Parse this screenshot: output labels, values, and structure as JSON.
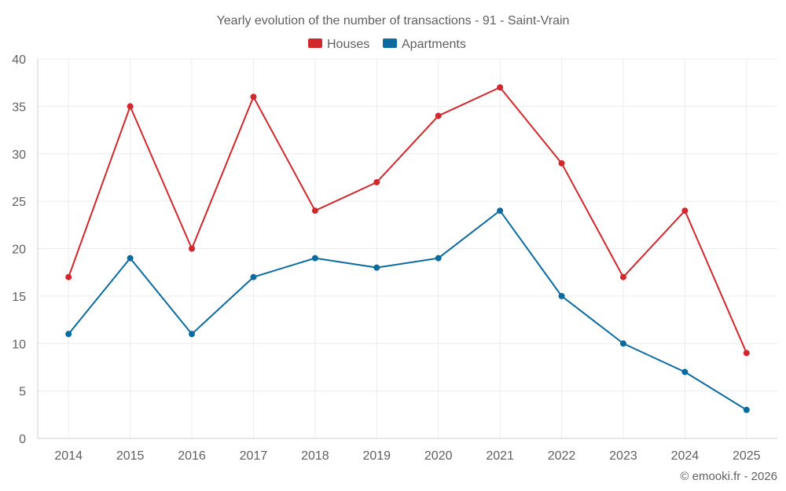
{
  "chart_data": {
    "type": "line",
    "title": "Yearly evolution of the number of transactions - 91 - Saint-Vrain",
    "categories": [
      "2014",
      "2015",
      "2016",
      "2017",
      "2018",
      "2019",
      "2020",
      "2021",
      "2022",
      "2023",
      "2024",
      "2025"
    ],
    "series": [
      {
        "name": "Houses",
        "color": "#d1282d",
        "values": [
          17,
          35,
          20,
          36,
          24,
          27,
          34,
          37,
          29,
          17,
          24,
          9
        ]
      },
      {
        "name": "Apartments",
        "color": "#0b6aa0",
        "values": [
          11,
          19,
          11,
          17,
          19,
          18,
          19,
          24,
          15,
          10,
          7,
          3
        ]
      }
    ],
    "ylim": [
      0,
      40
    ],
    "yticks": [
      0,
      5,
      10,
      15,
      20,
      25,
      30,
      35,
      40
    ],
    "xlabel": "",
    "ylabel": "",
    "grid": true,
    "legend_position": "top-center"
  },
  "credit": "© emooki.fr - 2026"
}
